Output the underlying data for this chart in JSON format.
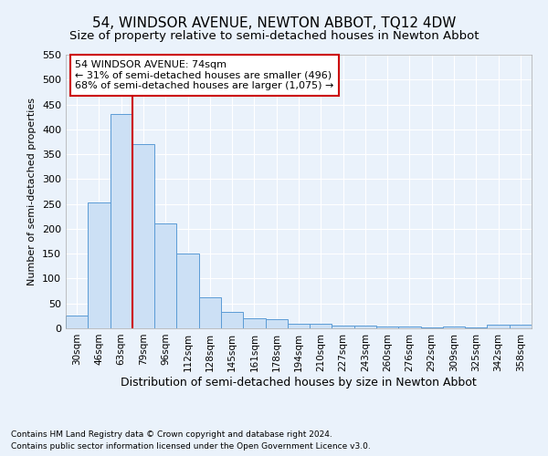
{
  "title": "54, WINDSOR AVENUE, NEWTON ABBOT, TQ12 4DW",
  "subtitle": "Size of property relative to semi-detached houses in Newton Abbot",
  "xlabel": "Distribution of semi-detached houses by size in Newton Abbot",
  "ylabel": "Number of semi-detached properties",
  "footnote1": "Contains HM Land Registry data © Crown copyright and database right 2024.",
  "footnote2": "Contains public sector information licensed under the Open Government Licence v3.0.",
  "annotation_line1": "54 WINDSOR AVENUE: 74sqm",
  "annotation_line2": "← 31% of semi-detached houses are smaller (496)",
  "annotation_line3": "68% of semi-detached houses are larger (1,075) →",
  "bar_labels": [
    "30sqm",
    "46sqm",
    "63sqm",
    "79sqm",
    "96sqm",
    "112sqm",
    "128sqm",
    "145sqm",
    "161sqm",
    "178sqm",
    "194sqm",
    "210sqm",
    "227sqm",
    "243sqm",
    "260sqm",
    "276sqm",
    "292sqm",
    "309sqm",
    "325sqm",
    "342sqm",
    "358sqm"
  ],
  "bar_values": [
    25,
    253,
    430,
    370,
    210,
    150,
    63,
    33,
    20,
    18,
    9,
    10,
    6,
    5,
    4,
    4,
    1,
    4,
    1,
    7,
    7
  ],
  "bar_color": "#cce0f5",
  "bar_edge_color": "#5b9bd5",
  "vline_color": "#cc0000",
  "vline_x": 2.5,
  "ylim": [
    0,
    550
  ],
  "yticks": [
    0,
    50,
    100,
    150,
    200,
    250,
    300,
    350,
    400,
    450,
    500,
    550
  ],
  "bg_color": "#eaf2fb",
  "grid_color": "#ffffff",
  "title_fontsize": 11,
  "subtitle_fontsize": 9.5,
  "xlabel_fontsize": 9,
  "ylabel_fontsize": 8,
  "annotation_fontsize": 8,
  "annotation_box_color": "#ffffff",
  "annotation_box_edge": "#cc0000",
  "footnote_fontsize": 6.5
}
